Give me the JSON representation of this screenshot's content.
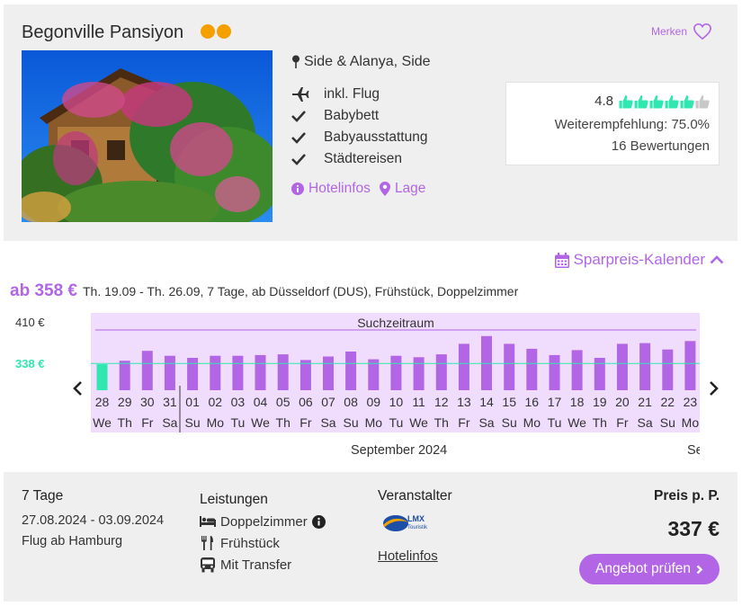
{
  "hotel": {
    "name": "Begonville Pansiyon",
    "stars": 2,
    "merken": "Merken",
    "location": "Side & Alanya, Side",
    "features": [
      {
        "icon": "plane-icon",
        "label": "inkl. Flug"
      },
      {
        "icon": "check-icon",
        "label": "Babybett"
      },
      {
        "icon": "check-icon",
        "label": "Babyausstattung"
      },
      {
        "icon": "check-icon",
        "label": "Städtereisen"
      }
    ],
    "links": {
      "hotelinfos": "Hotelinfos",
      "lage": "Lage"
    },
    "rating": {
      "score": "4.8",
      "thumbs_filled": 5,
      "thumbs_total": 6,
      "recommendation": "Weiterempfehlung: 75.0%",
      "reviews": "16 Bewertungen"
    },
    "colors": {
      "accent": "#b266e6",
      "rating": "#2ee8b0",
      "stars": "#f6a000"
    }
  },
  "calendar": {
    "toggle_label": "Sparpreis-Kalender",
    "summary_price": "ab 358 €",
    "summary_details": "Th. 19.09 - Th. 26.09, 7 Tage, ab Düsseldorf (DUS), Frühstück, Doppelzimmer",
    "max_label": "410 €",
    "min_label": "338 €",
    "band_label": "Suchzeitraum",
    "month_label": "September 2024",
    "next_month_label": "Se"
  },
  "chart_data": {
    "type": "bar",
    "ylim": [
      300,
      410
    ],
    "min_line": 338,
    "days": [
      "28",
      "29",
      "30",
      "31",
      "01",
      "02",
      "03",
      "04",
      "05",
      "06",
      "07",
      "08",
      "09",
      "10",
      "11",
      "12",
      "13",
      "14",
      "15",
      "16",
      "17",
      "18",
      "19",
      "20",
      "21",
      "22",
      "23"
    ],
    "weekdays": [
      "We",
      "Th",
      "Fr",
      "Sa",
      "Su",
      "Mo",
      "Tu",
      "We",
      "Th",
      "Fr",
      "Sa",
      "Su",
      "Mo",
      "Tu",
      "We",
      "Th",
      "Fr",
      "Sa",
      "Su",
      "Mo",
      "Tu",
      "We",
      "Th",
      "Fr",
      "Sa",
      "Su",
      "Mo"
    ],
    "values": [
      337,
      342,
      356,
      349,
      346,
      349,
      349,
      350,
      351,
      343,
      348,
      355,
      344,
      349,
      347,
      351,
      366,
      377,
      366,
      359,
      350,
      357,
      346,
      366,
      367,
      358,
      370
    ],
    "highlight_index": 0
  },
  "offer": {
    "duration": "7 Tage",
    "dates": "27.08.2024 - 03.09.2024",
    "flight": "Flug ab Hamburg",
    "leistungen_title": "Leistungen",
    "services": [
      {
        "icon": "bed-icon",
        "label": "Doppelzimmer",
        "info": true
      },
      {
        "icon": "cutlery-icon",
        "label": "Frühstück",
        "info": false
      },
      {
        "icon": "bus-icon",
        "label": "Mit Transfer",
        "info": false
      }
    ],
    "veranstalter_title": "Veranstalter",
    "operator_logo_text": "LMX Touristik",
    "operator_link": "Hotelinfos",
    "preis_label": "Preis p. P.",
    "price": "337 €",
    "cta": "Angebot prüfen"
  }
}
